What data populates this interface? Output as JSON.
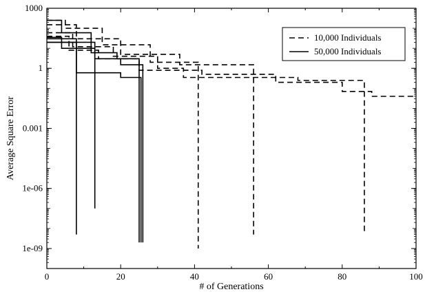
{
  "chart_data": {
    "type": "line",
    "title": "",
    "xlabel": "# of Generations",
    "ylabel": "Average Square Error",
    "xlim": [
      0,
      100
    ],
    "ylim_log10": [
      -10,
      3
    ],
    "y_scale": "log",
    "x_ticks": [
      0,
      20,
      40,
      60,
      80,
      100
    ],
    "x_tick_labels": [
      "0",
      "20",
      "40",
      "60",
      "80",
      "100"
    ],
    "y_ticks_log10": [
      -9,
      -6,
      -3,
      0,
      3
    ],
    "y_tick_labels": [
      "1e-09",
      "1e-06",
      "0.001",
      "1",
      "1000"
    ],
    "grid": false,
    "legend_position": "top-right",
    "series": [
      {
        "name": "10,000 Individuals",
        "style": "dashed",
        "color": "#000000",
        "runs": [
          {
            "x": [
              0,
              5,
              5,
              15,
              15,
              28,
              28,
              41,
              41
            ],
            "y": [
              250,
              250,
              100,
              100,
              15,
              15,
              2,
              2,
              1e-09
            ]
          },
          {
            "x": [
              0,
              8,
              8,
              20,
              20,
              36,
              36,
              56,
              56
            ],
            "y": [
              150,
              150,
              30,
              30,
              5,
              5,
              1.5,
              1.5,
              5e-09
            ]
          },
          {
            "x": [
              0,
              7,
              7,
              18,
              18,
              30,
              30,
              37,
              37,
              68,
              68,
              86,
              86
            ],
            "y": [
              60,
              60,
              12,
              12,
              4,
              4,
              1,
              1,
              0.35,
              0.35,
              0.25,
              0.25,
              5e-09
            ]
          },
          {
            "x": [
              0,
              6,
              6,
              14,
              14,
              25,
              25,
              42,
              42,
              62,
              62,
              80,
              80,
              88,
              88,
              100
            ],
            "y": [
              40,
              40,
              8,
              8,
              3,
              3,
              0.8,
              0.8,
              0.5,
              0.5,
              0.2,
              0.2,
              0.07,
              0.07,
              0.04,
              0.04
            ]
          }
        ]
      },
      {
        "name": "50,000 Individuals",
        "style": "solid",
        "color": "#000000",
        "runs": [
          {
            "x": [
              0,
              8,
              8
            ],
            "y": [
              30,
              30,
              5e-09
            ]
          },
          {
            "x": [
              0,
              13,
              13
            ],
            "y": [
              20,
              20,
              1e-07
            ]
          },
          {
            "x": [
              0,
              4,
              4,
              12,
              12,
              19,
              19,
              25,
              25
            ],
            "y": [
              250,
              250,
              60,
              60,
              6,
              6,
              3,
              3,
              2e-09
            ]
          },
          {
            "x": [
              0,
              4,
              4,
              13,
              13,
              20,
              20,
              26,
              26
            ],
            "y": [
              35,
              35,
              10,
              10,
              3,
              3,
              1.5,
              1.5,
              2e-09
            ]
          },
          {
            "x": [
              0,
              8,
              8,
              20,
              20,
              25.5,
              25.5
            ],
            "y": [
              20,
              20,
              0.6,
              0.6,
              0.35,
              0.35,
              2e-09
            ]
          }
        ]
      }
    ]
  }
}
